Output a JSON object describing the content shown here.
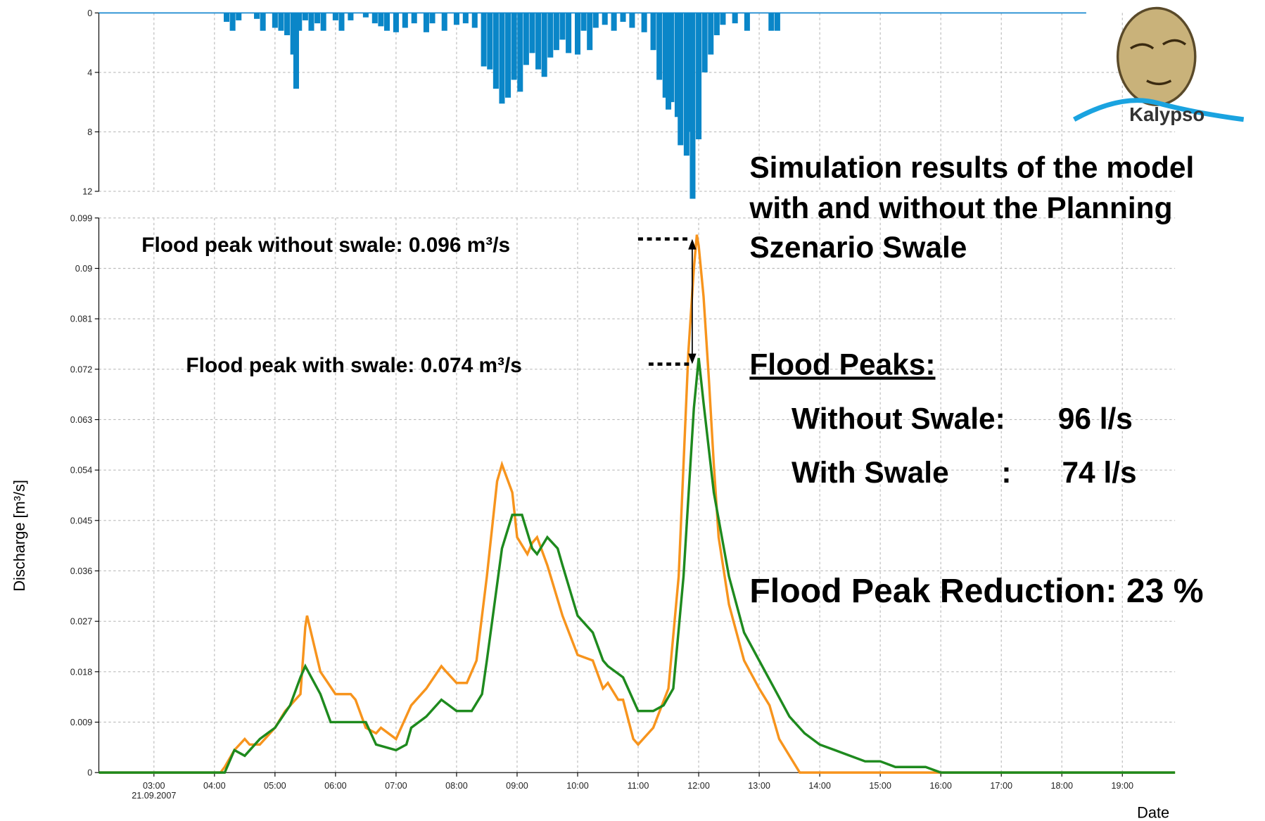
{
  "chart_data": [
    {
      "type": "bar",
      "color": "#0a86c8",
      "inverted": true,
      "x": [
        4.2,
        4.3,
        4.4,
        4.7,
        4.8,
        5.0,
        5.1,
        5.2,
        5.3,
        5.35,
        5.4,
        5.5,
        5.6,
        5.7,
        5.8,
        6.0,
        6.1,
        6.25,
        6.5,
        6.65,
        6.75,
        6.85,
        7.0,
        7.15,
        7.3,
        7.5,
        7.6,
        7.8,
        8.0,
        8.15,
        8.3,
        8.45,
        8.55,
        8.65,
        8.75,
        8.85,
        8.95,
        9.05,
        9.15,
        9.25,
        9.35,
        9.45,
        9.55,
        9.65,
        9.75,
        9.85,
        10.0,
        10.1,
        10.2,
        10.3,
        10.45,
        10.6,
        10.75,
        10.9,
        11.1,
        11.25,
        11.35,
        11.45,
        11.5,
        11.55,
        11.65,
        11.7,
        11.8,
        11.85,
        11.9,
        12.0,
        12.1,
        12.2,
        12.3,
        12.4,
        12.6,
        12.8,
        13.2,
        13.3
      ],
      "values": [
        0.6,
        1.2,
        0.5,
        0.4,
        1.2,
        1.0,
        1.2,
        1.5,
        2.8,
        5.1,
        1.2,
        0.5,
        1.2,
        0.7,
        1.2,
        0.5,
        1.2,
        0.5,
        0.3,
        0.7,
        0.9,
        1.2,
        1.3,
        1.0,
        0.7,
        1.3,
        0.7,
        1.2,
        0.8,
        0.7,
        1.0,
        3.6,
        3.8,
        5.1,
        6.1,
        5.7,
        4.5,
        5.3,
        3.5,
        2.7,
        3.8,
        4.3,
        3.0,
        2.5,
        1.8,
        2.7,
        2.8,
        1.2,
        2.5,
        1.0,
        0.8,
        1.2,
        0.6,
        1.0,
        1.3,
        2.5,
        4.5,
        5.7,
        6.5,
        6.0,
        7.0,
        8.9,
        9.6,
        8.0,
        12.5,
        8.5,
        4.0,
        2.8,
        1.5,
        0.8,
        0.7,
        1.2,
        1.2,
        1.2
      ],
      "xlim": [
        2.09,
        19.87
      ],
      "ylim": [
        0,
        12
      ],
      "yticks": [
        0,
        4,
        8,
        12
      ],
      "grid": true
    },
    {
      "type": "line",
      "y_label": "Discharge [m³/s]",
      "x_label": "Date",
      "x_sublabel": "21.09.2007",
      "xlim": [
        2.09,
        19.87
      ],
      "ylim": [
        0,
        0.099
      ],
      "yticks": [
        0,
        0.009,
        0.018,
        0.027,
        0.036,
        0.045,
        0.054,
        0.063,
        0.072,
        0.081,
        0.09,
        0.099
      ],
      "xticks": [
        {
          "value": 3,
          "label": "03:00"
        },
        {
          "value": 4,
          "label": "04:00"
        },
        {
          "value": 5,
          "label": "05:00"
        },
        {
          "value": 6,
          "label": "06:00"
        },
        {
          "value": 7,
          "label": "07:00"
        },
        {
          "value": 8,
          "label": "08:00"
        },
        {
          "value": 9,
          "label": "09:00"
        },
        {
          "value": 10,
          "label": "10:00"
        },
        {
          "value": 11,
          "label": "11:00"
        },
        {
          "value": 12,
          "label": "12:00"
        },
        {
          "value": 13,
          "label": "13:00"
        },
        {
          "value": 14,
          "label": "14:00"
        },
        {
          "value": 15,
          "label": "15:00"
        },
        {
          "value": 16,
          "label": "16:00"
        },
        {
          "value": 17,
          "label": "17:00"
        },
        {
          "value": 18,
          "label": "18:00"
        },
        {
          "value": 19,
          "label": "19:00"
        }
      ],
      "grid": true,
      "series": [
        {
          "color": "#f7941d",
          "x": [
            2.09,
            4.1,
            4.17,
            4.33,
            4.5,
            4.58,
            4.75,
            5.0,
            5.17,
            5.42,
            5.5,
            5.53,
            5.75,
            6.0,
            6.25,
            6.33,
            6.5,
            6.67,
            6.75,
            7.0,
            7.25,
            7.5,
            7.75,
            7.83,
            8.0,
            8.17,
            8.33,
            8.5,
            8.67,
            8.75,
            8.92,
            9.0,
            9.17,
            9.25,
            9.33,
            9.5,
            9.75,
            10.0,
            10.25,
            10.42,
            10.5,
            10.67,
            10.75,
            10.92,
            11.0,
            11.25,
            11.5,
            11.67,
            11.75,
            11.83,
            11.92,
            11.97,
            12.0,
            12.08,
            12.17,
            12.25,
            12.33,
            12.5,
            12.75,
            13.0,
            13.17,
            13.33,
            13.5,
            13.67,
            19.87
          ],
          "values": [
            0,
            0,
            0.001,
            0.004,
            0.006,
            0.005,
            0.005,
            0.008,
            0.011,
            0.014,
            0.026,
            0.028,
            0.018,
            0.014,
            0.014,
            0.013,
            0.008,
            0.007,
            0.008,
            0.006,
            0.012,
            0.015,
            0.019,
            0.018,
            0.016,
            0.016,
            0.02,
            0.035,
            0.052,
            0.055,
            0.05,
            0.042,
            0.039,
            0.041,
            0.042,
            0.037,
            0.028,
            0.021,
            0.02,
            0.015,
            0.016,
            0.013,
            0.013,
            0.006,
            0.005,
            0.008,
            0.015,
            0.035,
            0.055,
            0.075,
            0.09,
            0.096,
            0.094,
            0.085,
            0.07,
            0.055,
            0.042,
            0.03,
            0.02,
            0.015,
            0.012,
            0.006,
            0.003,
            0,
            0
          ]
        },
        {
          "color": "#1e8a1e",
          "x": [
            2.09,
            4.17,
            4.33,
            4.5,
            4.75,
            5.0,
            5.25,
            5.42,
            5.5,
            5.75,
            5.92,
            6.25,
            6.5,
            6.67,
            7.0,
            7.17,
            7.25,
            7.5,
            7.75,
            8.0,
            8.25,
            8.42,
            8.5,
            8.75,
            8.92,
            9.08,
            9.25,
            9.33,
            9.5,
            9.67,
            9.75,
            10.0,
            10.25,
            10.42,
            10.5,
            10.75,
            11.0,
            11.25,
            11.42,
            11.58,
            11.75,
            11.92,
            12.0,
            12.08,
            12.25,
            12.5,
            12.75,
            13.0,
            13.25,
            13.5,
            13.75,
            14.0,
            14.25,
            14.5,
            14.75,
            15.0,
            15.25,
            15.75,
            16.0,
            19.87
          ],
          "values": [
            0,
            0,
            0.004,
            0.003,
            0.006,
            0.008,
            0.012,
            0.017,
            0.019,
            0.014,
            0.009,
            0.009,
            0.009,
            0.005,
            0.004,
            0.005,
            0.008,
            0.01,
            0.013,
            0.011,
            0.011,
            0.014,
            0.02,
            0.04,
            0.046,
            0.046,
            0.04,
            0.039,
            0.042,
            0.04,
            0.037,
            0.028,
            0.025,
            0.02,
            0.019,
            0.017,
            0.011,
            0.011,
            0.012,
            0.015,
            0.035,
            0.065,
            0.074,
            0.066,
            0.05,
            0.035,
            0.025,
            0.02,
            0.015,
            0.01,
            0.007,
            0.005,
            0.004,
            0.003,
            0.002,
            0.002,
            0.001,
            0.001,
            0,
            0
          ]
        }
      ],
      "annotations": [
        "Flood peak without swale: 0.096 m³/s",
        "Flood peak with swale: 0.074 m³/s"
      ]
    }
  ],
  "text_panel": {
    "title_lines": [
      "Simulation results of the model",
      "with and without the Planning",
      "Szenario Swale"
    ],
    "peaks_heading": "Flood Peaks:",
    "rows": [
      [
        "Without Swale:",
        "96 l/s"
      ],
      [
        "With Swale",
        ":",
        "74 l/s"
      ]
    ],
    "reduction": "Flood Peak Reduction:  23 %"
  },
  "logo": "Kalypso"
}
